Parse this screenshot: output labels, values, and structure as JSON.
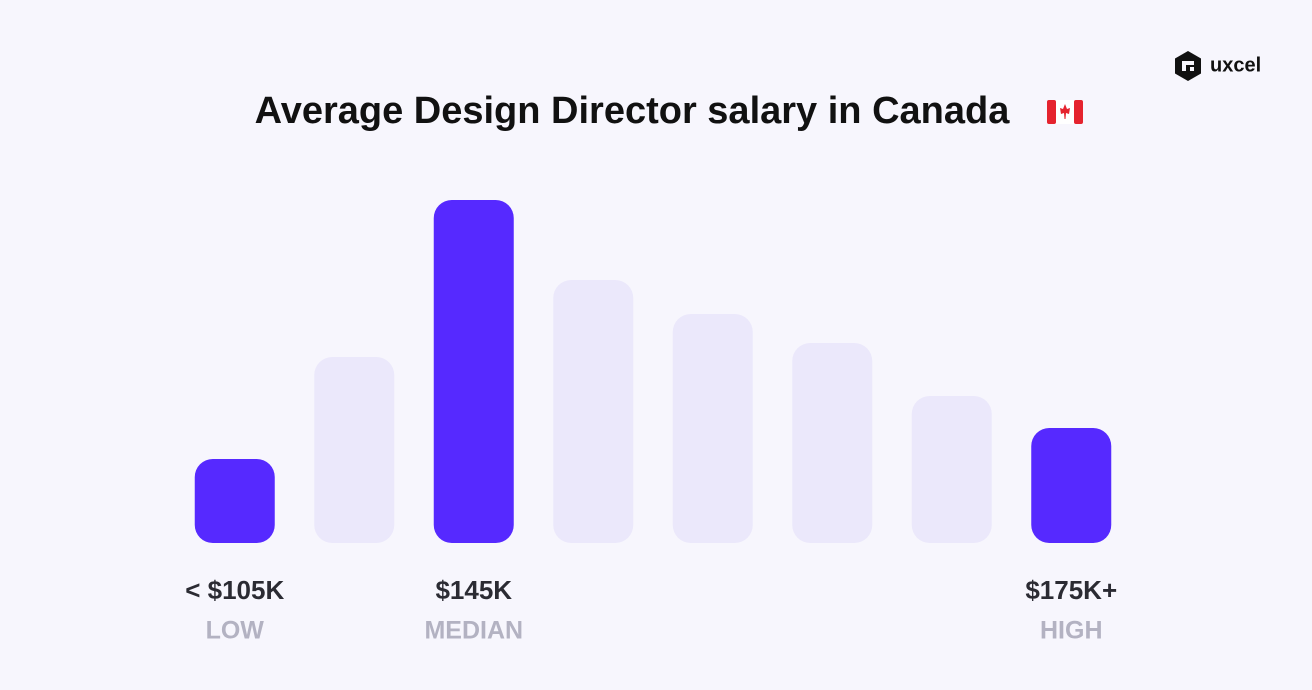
{
  "brand": "uxcel",
  "chart_data": {
    "type": "bar",
    "title": "Average Design Director salary in Canada",
    "categories": [
      "< $105K",
      null,
      "$145K",
      null,
      null,
      null,
      null,
      "$175K+"
    ],
    "sublabels": [
      "LOW",
      null,
      "MEDIAN",
      null,
      null,
      null,
      null,
      "HIGH"
    ],
    "values": [
      84,
      186,
      343,
      263,
      229,
      200,
      147,
      115
    ],
    "colors": [
      "#5629ff",
      "#ebe8fb",
      "#5629ff",
      "#ebe8fb",
      "#ebe8fb",
      "#ebe8fb",
      "#ebe8fb",
      "#5629ff"
    ],
    "ylim": [
      0,
      350
    ]
  }
}
